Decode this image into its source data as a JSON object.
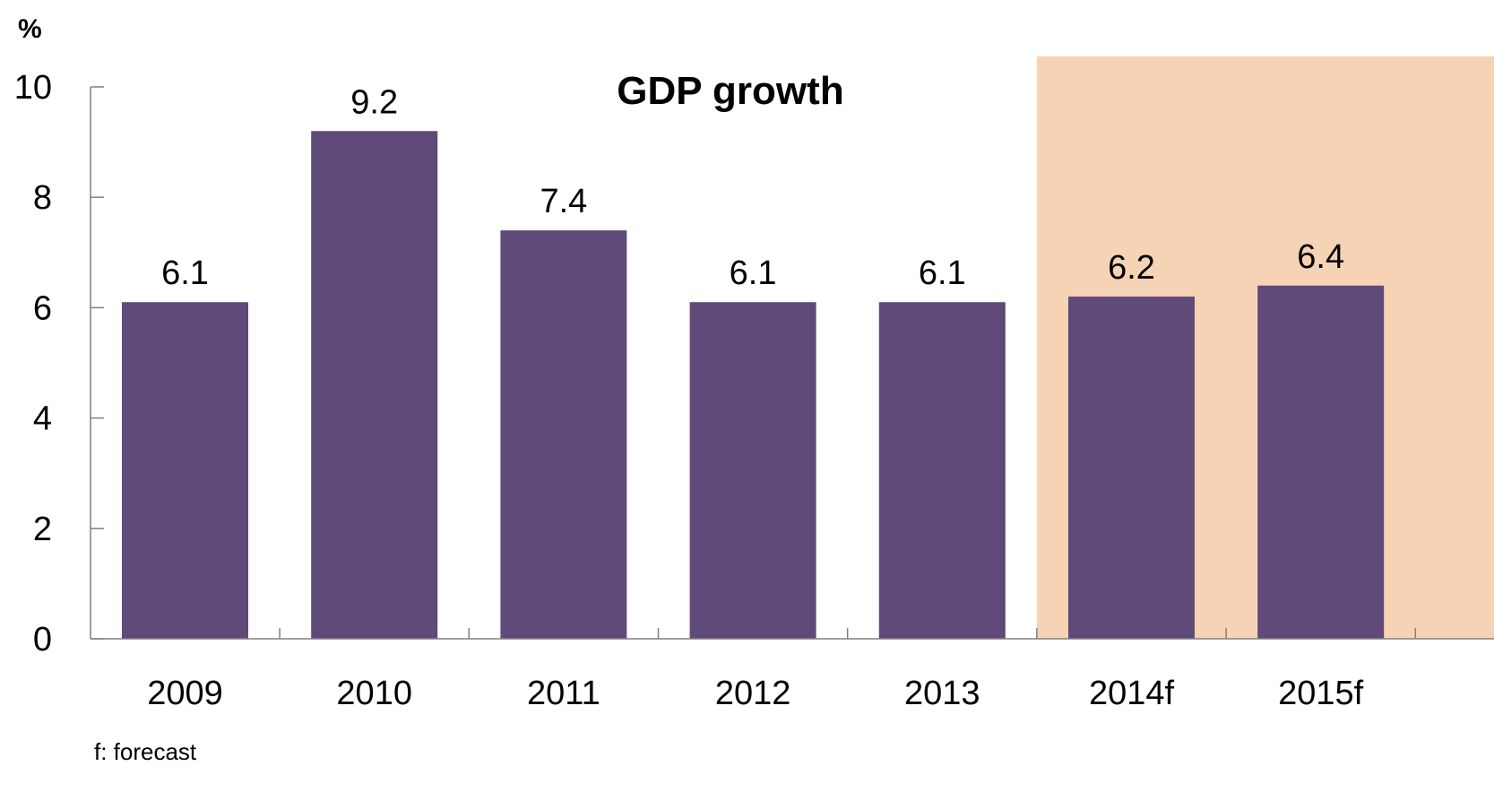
{
  "chart_data": {
    "type": "bar",
    "title": "GDP growth",
    "unit_label": "%",
    "categories": [
      "2009",
      "2010",
      "2011",
      "2012",
      "2013",
      "2014f",
      "2015f"
    ],
    "values": [
      6.1,
      9.2,
      7.4,
      6.1,
      6.1,
      6.2,
      6.4
    ],
    "data_labels": [
      "6.1",
      "9.2",
      "7.4",
      "6.1",
      "6.1",
      "6.2",
      "6.4"
    ],
    "ylim": [
      0,
      10
    ],
    "yticks": [
      "0",
      "2",
      "4",
      "6",
      "8",
      "10"
    ],
    "forecast_start_index": 5,
    "grid": false,
    "legend": "none",
    "colors": {
      "bar": "#5f4a7a",
      "forecast_band": "#f6d3b4",
      "axis": "#808080"
    },
    "note": "f: forecast"
  }
}
